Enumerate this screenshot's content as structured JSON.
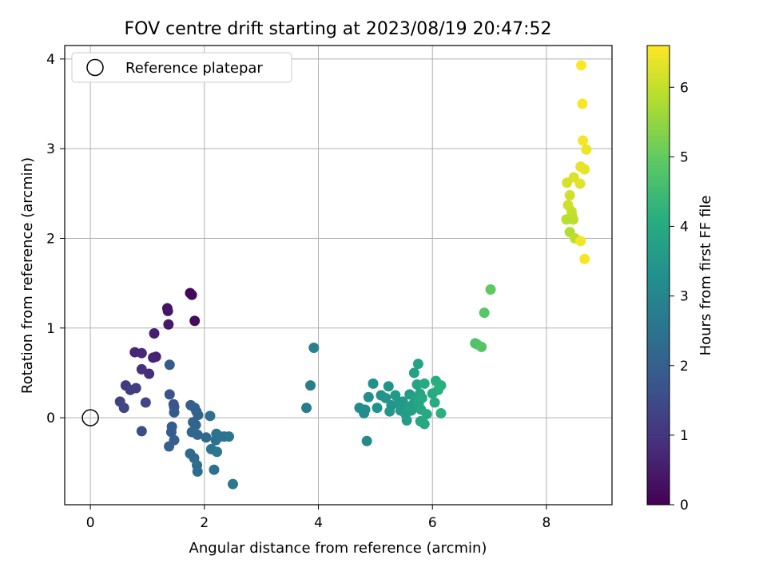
{
  "chart_data": {
    "type": "scatter",
    "title": "FOV centre drift starting at 2023/08/19 20:47:52",
    "xlabel": "Angular distance from reference (arcmin)",
    "ylabel": "Rotation from reference (arcmin)",
    "xlim": [
      -0.45,
      9.15
    ],
    "ylim": [
      -0.97,
      4.15
    ],
    "xticks": [
      0,
      2,
      4,
      6,
      8
    ],
    "yticks": [
      0,
      1,
      2,
      3,
      4
    ],
    "grid": true,
    "legend": {
      "location": "upper-left",
      "entries": [
        "Reference platepar"
      ]
    },
    "colorbar": {
      "label": "Hours from first FF file",
      "colormap": "viridis",
      "min": 0,
      "max": 6.6,
      "ticks": [
        0,
        1,
        2,
        3,
        4,
        5,
        6
      ]
    },
    "reference_point": {
      "x": 0,
      "y": 0,
      "label": "Reference platepar"
    },
    "series": [
      {
        "points": [
          {
            "x": 1.75,
            "y": 1.39,
            "c": 0.1
          },
          {
            "x": 1.78,
            "y": 1.37,
            "c": 0.15
          },
          {
            "x": 1.83,
            "y": 1.08,
            "c": 0.2
          },
          {
            "x": 1.35,
            "y": 1.22,
            "c": 0.35
          },
          {
            "x": 1.36,
            "y": 1.19,
            "c": 0.4
          },
          {
            "x": 1.37,
            "y": 1.04,
            "c": 0.45
          },
          {
            "x": 1.12,
            "y": 0.94,
            "c": 0.55
          },
          {
            "x": 1.15,
            "y": 0.68,
            "c": 0.6
          },
          {
            "x": 1.1,
            "y": 0.67,
            "c": 0.65
          },
          {
            "x": 0.78,
            "y": 0.73,
            "c": 0.7
          },
          {
            "x": 0.9,
            "y": 0.72,
            "c": 0.75
          },
          {
            "x": 1.03,
            "y": 0.49,
            "c": 0.85
          },
          {
            "x": 0.9,
            "y": 0.54,
            "c": 0.9
          },
          {
            "x": 0.62,
            "y": 0.36,
            "c": 1.1
          },
          {
            "x": 0.7,
            "y": 0.31,
            "c": 1.15
          },
          {
            "x": 0.8,
            "y": 0.33,
            "c": 1.2
          },
          {
            "x": 0.52,
            "y": 0.18,
            "c": 1.3
          },
          {
            "x": 0.59,
            "y": 0.11,
            "c": 1.35
          },
          {
            "x": 0.97,
            "y": 0.17,
            "c": 1.4
          },
          {
            "x": 0.9,
            "y": -0.15,
            "c": 1.55
          },
          {
            "x": 1.39,
            "y": 0.59,
            "c": 1.9
          },
          {
            "x": 1.39,
            "y": 0.26,
            "c": 1.7
          },
          {
            "x": 1.46,
            "y": 0.15,
            "c": 1.75
          },
          {
            "x": 1.47,
            "y": 0.12,
            "c": 1.8
          },
          {
            "x": 1.47,
            "y": 0.06,
            "c": 1.85
          },
          {
            "x": 1.43,
            "y": -0.1,
            "c": 1.9
          },
          {
            "x": 1.42,
            "y": -0.16,
            "c": 1.95
          },
          {
            "x": 1.47,
            "y": -0.25,
            "c": 2.0
          },
          {
            "x": 1.38,
            "y": -0.32,
            "c": 2.05
          },
          {
            "x": 1.76,
            "y": 0.14,
            "c": 2.0
          },
          {
            "x": 1.83,
            "y": 0.11,
            "c": 2.05
          },
          {
            "x": 1.86,
            "y": 0.07,
            "c": 2.1
          },
          {
            "x": 1.89,
            "y": 0.03,
            "c": 2.1
          },
          {
            "x": 1.8,
            "y": -0.05,
            "c": 2.15
          },
          {
            "x": 1.85,
            "y": -0.08,
            "c": 2.15
          },
          {
            "x": 1.78,
            "y": -0.16,
            "c": 2.2
          },
          {
            "x": 1.88,
            "y": -0.19,
            "c": 2.2
          },
          {
            "x": 2.03,
            "y": -0.22,
            "c": 2.25
          },
          {
            "x": 1.75,
            "y": -0.4,
            "c": 2.3
          },
          {
            "x": 1.82,
            "y": -0.45,
            "c": 2.3
          },
          {
            "x": 1.87,
            "y": -0.53,
            "c": 2.35
          },
          {
            "x": 1.88,
            "y": -0.6,
            "c": 2.35
          },
          {
            "x": 2.17,
            "y": -0.58,
            "c": 2.4
          },
          {
            "x": 2.1,
            "y": 0.02,
            "c": 2.4
          },
          {
            "x": 2.21,
            "y": -0.18,
            "c": 2.45
          },
          {
            "x": 2.2,
            "y": -0.25,
            "c": 2.45
          },
          {
            "x": 2.28,
            "y": -0.21,
            "c": 2.5
          },
          {
            "x": 2.35,
            "y": -0.21,
            "c": 2.5
          },
          {
            "x": 2.43,
            "y": -0.21,
            "c": 2.55
          },
          {
            "x": 2.12,
            "y": -0.35,
            "c": 2.55
          },
          {
            "x": 2.22,
            "y": -0.38,
            "c": 2.6
          },
          {
            "x": 2.5,
            "y": -0.74,
            "c": 2.6
          },
          {
            "x": 3.79,
            "y": 0.11,
            "c": 2.75
          },
          {
            "x": 3.86,
            "y": 0.36,
            "c": 2.8
          },
          {
            "x": 3.92,
            "y": 0.78,
            "c": 2.85
          },
          {
            "x": 4.85,
            "y": -0.26,
            "c": 3.15
          },
          {
            "x": 4.72,
            "y": 0.11,
            "c": 3.15
          },
          {
            "x": 4.8,
            "y": 0.05,
            "c": 3.2
          },
          {
            "x": 4.82,
            "y": 0.09,
            "c": 3.2
          },
          {
            "x": 4.88,
            "y": 0.23,
            "c": 3.25
          },
          {
            "x": 4.96,
            "y": 0.38,
            "c": 3.3
          },
          {
            "x": 5.03,
            "y": 0.11,
            "c": 3.3
          },
          {
            "x": 5.1,
            "y": 0.25,
            "c": 3.35
          },
          {
            "x": 5.18,
            "y": 0.22,
            "c": 3.4
          },
          {
            "x": 5.23,
            "y": 0.35,
            "c": 3.4
          },
          {
            "x": 5.25,
            "y": 0.07,
            "c": 3.45
          },
          {
            "x": 5.28,
            "y": 0.14,
            "c": 3.45
          },
          {
            "x": 5.35,
            "y": 0.25,
            "c": 3.5
          },
          {
            "x": 5.4,
            "y": 0.16,
            "c": 3.5
          },
          {
            "x": 5.44,
            "y": 0.08,
            "c": 3.55
          },
          {
            "x": 5.48,
            "y": 0.18,
            "c": 3.55
          },
          {
            "x": 5.53,
            "y": 0.04,
            "c": 3.6
          },
          {
            "x": 5.55,
            "y": -0.03,
            "c": 3.6
          },
          {
            "x": 5.58,
            "y": 0.12,
            "c": 3.65
          },
          {
            "x": 5.6,
            "y": 0.26,
            "c": 3.65
          },
          {
            "x": 5.63,
            "y": 0.08,
            "c": 3.7
          },
          {
            "x": 5.66,
            "y": 0.15,
            "c": 3.7
          },
          {
            "x": 5.68,
            "y": 0.5,
            "c": 3.75
          },
          {
            "x": 5.7,
            "y": 0.21,
            "c": 3.75
          },
          {
            "x": 5.73,
            "y": 0.37,
            "c": 3.8
          },
          {
            "x": 5.75,
            "y": 0.6,
            "c": 3.8
          },
          {
            "x": 5.76,
            "y": 0.16,
            "c": 3.85
          },
          {
            "x": 5.78,
            "y": 0.27,
            "c": 3.85
          },
          {
            "x": 5.79,
            "y": -0.04,
            "c": 3.9
          },
          {
            "x": 5.8,
            "y": 0.09,
            "c": 3.9
          },
          {
            "x": 5.82,
            "y": 0.22,
            "c": 3.95
          },
          {
            "x": 5.86,
            "y": -0.07,
            "c": 3.95
          },
          {
            "x": 5.9,
            "y": 0.04,
            "c": 4.0
          },
          {
            "x": 5.86,
            "y": 0.38,
            "c": 4.0
          },
          {
            "x": 6.0,
            "y": 0.27,
            "c": 4.05
          },
          {
            "x": 6.04,
            "y": 0.17,
            "c": 4.05
          },
          {
            "x": 6.06,
            "y": 0.41,
            "c": 4.1
          },
          {
            "x": 6.1,
            "y": 0.31,
            "c": 4.1
          },
          {
            "x": 6.15,
            "y": 0.36,
            "c": 4.15
          },
          {
            "x": 6.15,
            "y": 0.05,
            "c": 4.15
          },
          {
            "x": 6.75,
            "y": 0.83,
            "c": 4.75
          },
          {
            "x": 6.78,
            "y": 0.82,
            "c": 4.75
          },
          {
            "x": 6.86,
            "y": 0.79,
            "c": 4.8
          },
          {
            "x": 6.91,
            "y": 1.17,
            "c": 4.85
          },
          {
            "x": 7.02,
            "y": 1.43,
            "c": 4.95
          },
          {
            "x": 8.61,
            "y": 3.93,
            "c": 6.6
          },
          {
            "x": 8.63,
            "y": 3.5,
            "c": 6.55
          },
          {
            "x": 8.64,
            "y": 3.09,
            "c": 6.5
          },
          {
            "x": 8.7,
            "y": 2.99,
            "c": 6.45
          },
          {
            "x": 8.67,
            "y": 2.77,
            "c": 6.4
          },
          {
            "x": 8.6,
            "y": 2.8,
            "c": 6.35
          },
          {
            "x": 8.59,
            "y": 2.61,
            "c": 6.3
          },
          {
            "x": 8.48,
            "y": 2.68,
            "c": 6.25
          },
          {
            "x": 8.36,
            "y": 2.62,
            "c": 6.2
          },
          {
            "x": 8.41,
            "y": 2.48,
            "c": 6.15
          },
          {
            "x": 8.38,
            "y": 2.37,
            "c": 6.1
          },
          {
            "x": 8.44,
            "y": 2.3,
            "c": 6.05
          },
          {
            "x": 8.45,
            "y": 2.25,
            "c": 6.0
          },
          {
            "x": 8.47,
            "y": 2.21,
            "c": 5.95
          },
          {
            "x": 8.35,
            "y": 2.21,
            "c": 5.9
          },
          {
            "x": 8.41,
            "y": 2.07,
            "c": 5.85
          },
          {
            "x": 8.5,
            "y": 2.0,
            "c": 5.95
          },
          {
            "x": 8.6,
            "y": 1.97,
            "c": 6.5
          },
          {
            "x": 8.67,
            "y": 1.77,
            "c": 6.55
          }
        ]
      }
    ]
  }
}
